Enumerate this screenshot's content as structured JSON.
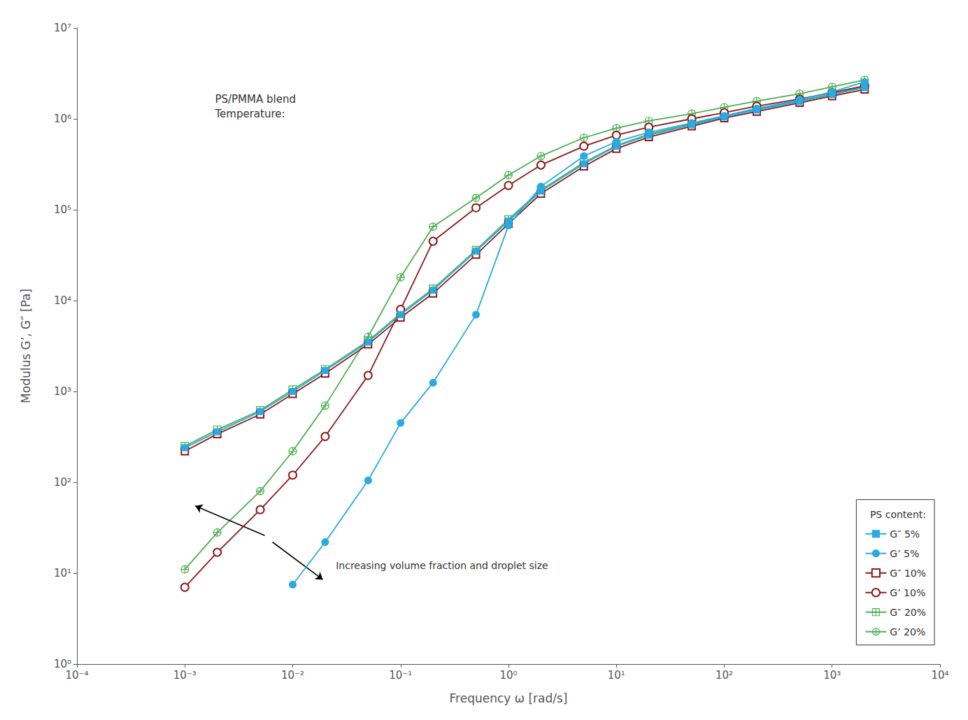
{
  "chart_data": {
    "type": "line",
    "xlabel": "Frequency ω [rad/s]",
    "ylabel": "Modulus G’, G″ [Pa]",
    "annotations": [
      "PS/PMMA blend\nTemperature:",
      "Increasing volume fraction and droplet size"
    ],
    "legend_title": "PS content:",
    "legend": "lower right",
    "log": true,
    "grid": false,
    "xlim": [
      0.0001,
      10000.0
    ],
    "ylim": [
      1.0,
      10000000.0
    ],
    "xticks": [
      {
        "value": 0.0001,
        "label": "10⁻⁴"
      },
      {
        "value": 0.001,
        "label": "10⁻³"
      },
      {
        "value": 0.01,
        "label": "10⁻²"
      },
      {
        "value": 0.1,
        "label": "10⁻¹"
      },
      {
        "value": 1,
        "label": "10⁰"
      },
      {
        "value": 10,
        "label": "10¹"
      },
      {
        "value": 100,
        "label": "10²"
      },
      {
        "value": 1000,
        "label": "10³"
      },
      {
        "value": 10000,
        "label": "10⁴"
      }
    ],
    "yticks": [
      {
        "value": 1,
        "label": "10⁰"
      },
      {
        "value": 10,
        "label": "10¹"
      },
      {
        "value": 100,
        "label": "10²"
      },
      {
        "value": 1000,
        "label": "10³"
      },
      {
        "value": 10000,
        "label": "10⁴"
      },
      {
        "value": 100000,
        "label": "10⁵"
      },
      {
        "value": 1000000,
        "label": "10⁶"
      },
      {
        "value": 10000000,
        "label": "10⁷"
      }
    ],
    "series": [
      {
        "name": "G″ 5%",
        "color": "#29ABE2",
        "marker": "square",
        "x": [
          0.001,
          0.002,
          0.005,
          0.01,
          0.02,
          0.05,
          0.1,
          0.2,
          0.5,
          1.0,
          2.0,
          5.0,
          10,
          20,
          50,
          100,
          200,
          500,
          1000,
          2000
        ],
        "values": [
          240,
          360,
          600,
          1000,
          1700,
          3500,
          7000,
          13000,
          35000,
          75000,
          160000,
          320000,
          500000,
          660000,
          860000,
          1050000,
          1250000,
          1550000,
          1850000,
          2200000
        ]
      },
      {
        "name": "G’ 5%",
        "color": "#29ABE2",
        "marker": "circle",
        "x": [
          0.01,
          0.02,
          0.05,
          0.1,
          0.2,
          0.5,
          1.0,
          2.0,
          5.0,
          10,
          20,
          50,
          100,
          200,
          500,
          1000,
          2000
        ],
        "values": [
          7.5,
          22,
          105,
          450,
          1250,
          7000,
          67000,
          180000,
          390000,
          560000,
          710000,
          900000,
          1080000,
          1300000,
          1620000,
          1980000,
          2550000
        ]
      },
      {
        "name": "G″ 10%",
        "color": "#8B1A1A",
        "marker": "square_open",
        "x": [
          0.001,
          0.002,
          0.005,
          0.01,
          0.02,
          0.05,
          0.1,
          0.2,
          0.5,
          1.0,
          2.0,
          5.0,
          10,
          20,
          50,
          100,
          200,
          500,
          1000,
          2000
        ],
        "values": [
          220,
          340,
          560,
          940,
          1580,
          3300,
          6500,
          12000,
          32000,
          70000,
          150000,
          300000,
          470000,
          630000,
          830000,
          1020000,
          1200000,
          1500000,
          1780000,
          2100000
        ]
      },
      {
        "name": "G’ 10%",
        "color": "#8B1A1A",
        "marker": "circle_open",
        "x": [
          0.001,
          0.002,
          0.005,
          0.01,
          0.02,
          0.05,
          0.1,
          0.2,
          0.5,
          1.0,
          2.0,
          5.0,
          10,
          20,
          50,
          100,
          200,
          500,
          1000,
          2000
        ],
        "values": [
          7,
          17,
          50,
          120,
          320,
          1500,
          8000,
          45000,
          105000,
          185000,
          310000,
          500000,
          660000,
          810000,
          1000000,
          1170000,
          1380000,
          1650000,
          1950000,
          2300000
        ]
      },
      {
        "name": "G″ 20%",
        "color": "#4CAF50",
        "marker": "square_plus",
        "x": [
          0.001,
          0.002,
          0.005,
          0.01,
          0.02,
          0.05,
          0.1,
          0.2,
          0.5,
          1.0,
          2.0,
          5.0,
          10,
          20,
          50,
          100,
          200,
          500,
          1000,
          2000
        ],
        "values": [
          250,
          380,
          620,
          1050,
          1750,
          3600,
          7200,
          13500,
          36000,
          78000,
          165000,
          330000,
          510000,
          680000,
          880000,
          1070000,
          1270000,
          1580000,
          1880000,
          2250000
        ]
      },
      {
        "name": "G’ 20%",
        "color": "#4CAF50",
        "marker": "circle_plus",
        "x": [
          0.001,
          0.002,
          0.005,
          0.01,
          0.02,
          0.05,
          0.1,
          0.2,
          0.5,
          1.0,
          2.0,
          5.0,
          10,
          20,
          50,
          100,
          200,
          500,
          1000,
          2000
        ],
        "values": [
          11,
          28,
          80,
          220,
          700,
          4000,
          18000,
          65000,
          135000,
          240000,
          390000,
          620000,
          790000,
          950000,
          1140000,
          1340000,
          1570000,
          1890000,
          2250000,
          2680000
        ]
      }
    ]
  }
}
